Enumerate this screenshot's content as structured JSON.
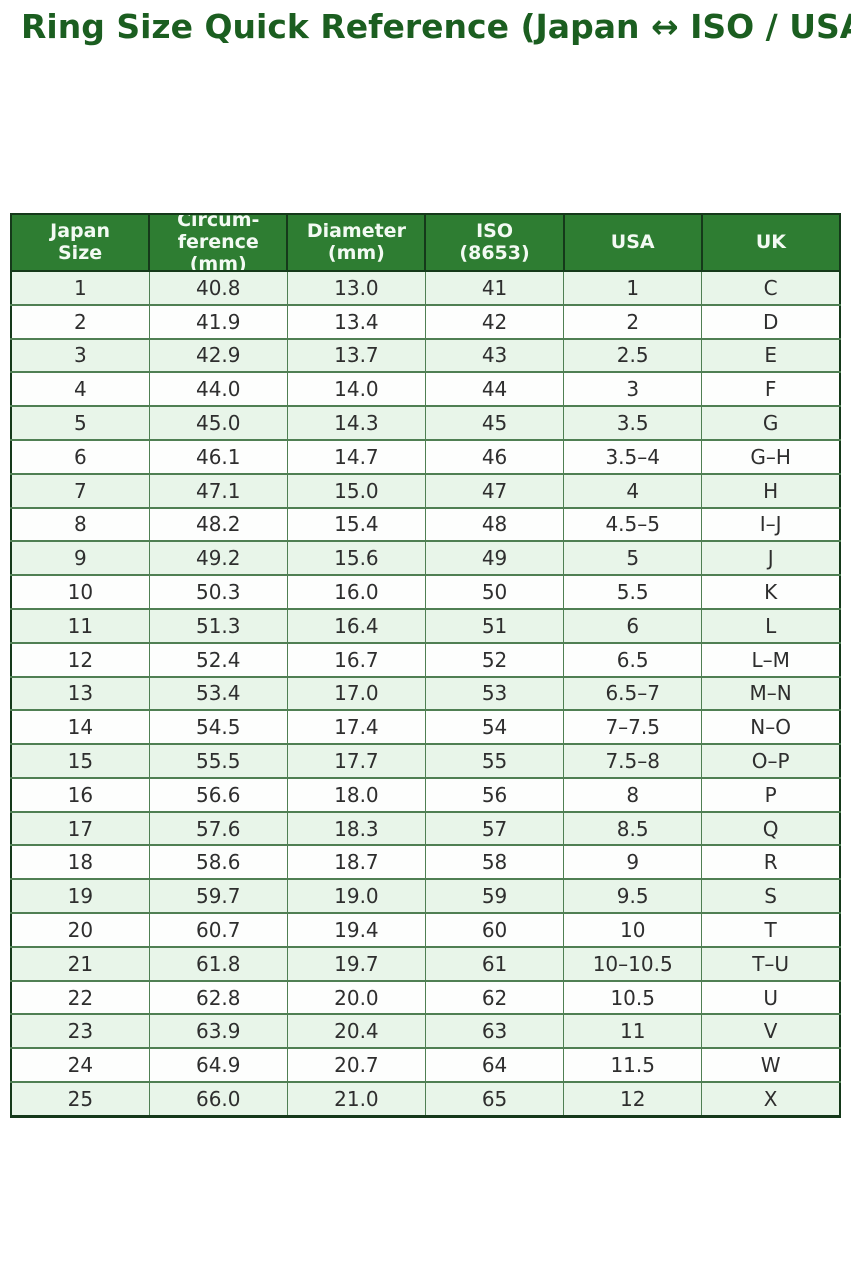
{
  "title": "Ring Size Quick Reference (Japan ↔ ISO / USA / UK)",
  "colors": {
    "title_green": "#1b5e20",
    "header_bg": "#2e7d32",
    "header_text": "#f3faf3",
    "row_alt_bg": "#e8f5e9",
    "row_bg": "#fdfefd",
    "body_border": "#4f7f53",
    "outer_border": "#15391a"
  },
  "chart_data": {
    "type": "table",
    "title": "Ring Size Quick Reference (Japan ↔ ISO / USA / UK)",
    "columns": [
      "Japan\nSize",
      "Circum-\nference\n(mm)",
      "Diameter\n(mm)",
      "ISO\n(8653)",
      "USA",
      "UK"
    ],
    "rows": [
      [
        "1",
        "40.8",
        "13.0",
        "41",
        "1",
        "C"
      ],
      [
        "2",
        "41.9",
        "13.4",
        "42",
        "2",
        "D"
      ],
      [
        "3",
        "42.9",
        "13.7",
        "43",
        "2.5",
        "E"
      ],
      [
        "4",
        "44.0",
        "14.0",
        "44",
        "3",
        "F"
      ],
      [
        "5",
        "45.0",
        "14.3",
        "45",
        "3.5",
        "G"
      ],
      [
        "6",
        "46.1",
        "14.7",
        "46",
        "3.5–4",
        "G–H"
      ],
      [
        "7",
        "47.1",
        "15.0",
        "47",
        "4",
        "H"
      ],
      [
        "8",
        "48.2",
        "15.4",
        "48",
        "4.5–5",
        "I–J"
      ],
      [
        "9",
        "49.2",
        "15.6",
        "49",
        "5",
        "J"
      ],
      [
        "10",
        "50.3",
        "16.0",
        "50",
        "5.5",
        "K"
      ],
      [
        "11",
        "51.3",
        "16.4",
        "51",
        "6",
        "L"
      ],
      [
        "12",
        "52.4",
        "16.7",
        "52",
        "6.5",
        "L–M"
      ],
      [
        "13",
        "53.4",
        "17.0",
        "53",
        "6.5–7",
        "M–N"
      ],
      [
        "14",
        "54.5",
        "17.4",
        "54",
        "7–7.5",
        "N–O"
      ],
      [
        "15",
        "55.5",
        "17.7",
        "55",
        "7.5–8",
        "O–P"
      ],
      [
        "16",
        "56.6",
        "18.0",
        "56",
        "8",
        "P"
      ],
      [
        "17",
        "57.6",
        "18.3",
        "57",
        "8.5",
        "Q"
      ],
      [
        "18",
        "58.6",
        "18.7",
        "58",
        "9",
        "R"
      ],
      [
        "19",
        "59.7",
        "19.0",
        "59",
        "9.5",
        "S"
      ],
      [
        "20",
        "60.7",
        "19.4",
        "60",
        "10",
        "T"
      ],
      [
        "21",
        "61.8",
        "19.7",
        "61",
        "10–10.5",
        "T–U"
      ],
      [
        "22",
        "62.8",
        "20.0",
        "62",
        "10.5",
        "U"
      ],
      [
        "23",
        "63.9",
        "20.4",
        "63",
        "11",
        "V"
      ],
      [
        "24",
        "64.9",
        "20.7",
        "64",
        "11.5",
        "W"
      ],
      [
        "25",
        "66.0",
        "21.0",
        "65",
        "12",
        "X"
      ]
    ]
  }
}
